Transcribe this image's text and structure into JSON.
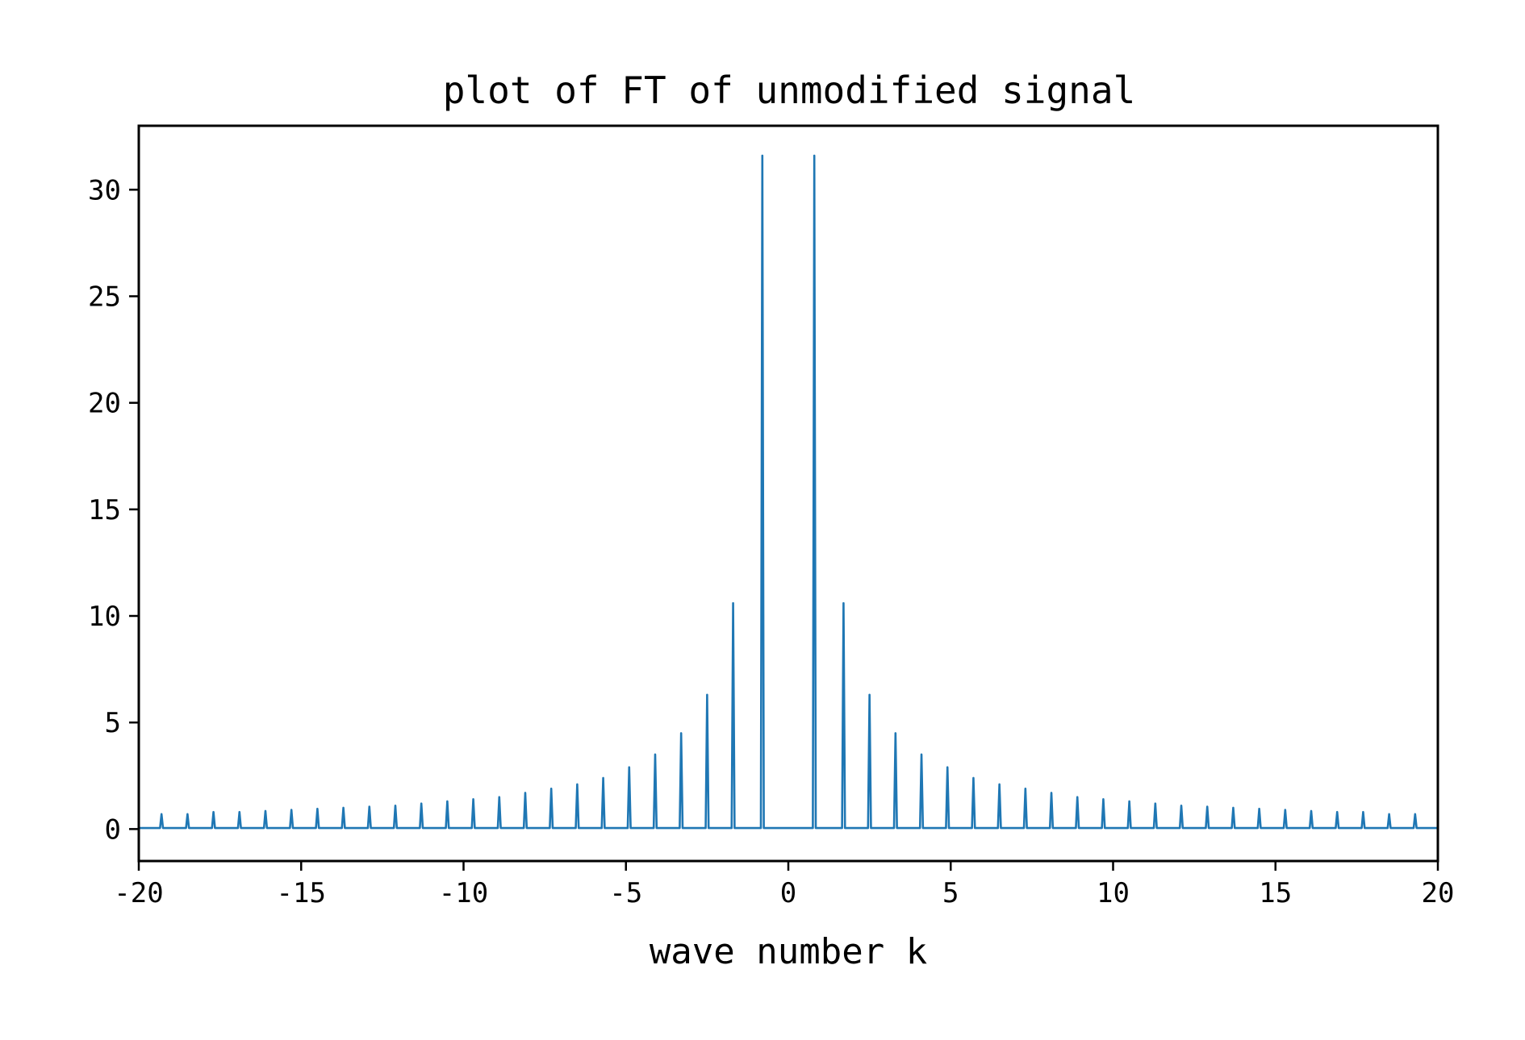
{
  "chart_data": {
    "type": "line",
    "title": "plot of FT of unmodified signal",
    "xlabel": "wave number k",
    "ylabel": "",
    "xlim": [
      -20,
      20
    ],
    "ylim": [
      -1.5,
      33
    ],
    "x_ticks": [
      -20,
      -15,
      -10,
      -5,
      0,
      5,
      10,
      15,
      20
    ],
    "y_ticks": [
      0,
      5,
      10,
      15,
      20,
      25,
      30
    ],
    "x_tick_labels": [
      "-20",
      "-15",
      "-10",
      "-5",
      "0",
      "5",
      "10",
      "15",
      "20"
    ],
    "y_tick_labels": [
      "0",
      "5",
      "10",
      "15",
      "20",
      "25",
      "30"
    ],
    "grid": false,
    "color": "#1f77b4",
    "baseline": 0.05,
    "series": [
      {
        "peaks_k": [
          -19.3,
          -18.5,
          -17.7,
          -16.9,
          -16.1,
          -15.3,
          -14.5,
          -13.7,
          -12.9,
          -12.1,
          -11.3,
          -10.5,
          -9.7,
          -8.9,
          -8.1,
          -7.3,
          -6.5,
          -5.7,
          -4.9,
          -4.1,
          -3.3,
          -2.5,
          -1.7,
          -0.8,
          0.0,
          0.8,
          1.7,
          2.5,
          3.3,
          4.1,
          4.9,
          5.7,
          6.5,
          7.3,
          8.1,
          8.9,
          9.7,
          10.5,
          11.3,
          12.1,
          12.9,
          13.7,
          14.5,
          15.3,
          16.1,
          16.9,
          17.7,
          18.5,
          19.3
        ],
        "peaks_amp": [
          0.7,
          0.7,
          0.8,
          0.8,
          0.85,
          0.9,
          0.95,
          1.0,
          1.05,
          1.1,
          1.2,
          1.3,
          1.4,
          1.5,
          1.7,
          1.9,
          2.1,
          2.4,
          2.9,
          3.5,
          4.5,
          6.3,
          10.6,
          31.6,
          0.05,
          31.6,
          10.6,
          6.3,
          4.5,
          3.5,
          2.9,
          2.4,
          2.1,
          1.9,
          1.7,
          1.5,
          1.4,
          1.3,
          1.2,
          1.1,
          1.05,
          1.0,
          0.95,
          0.9,
          0.85,
          0.8,
          0.8,
          0.7,
          0.7
        ]
      }
    ]
  }
}
